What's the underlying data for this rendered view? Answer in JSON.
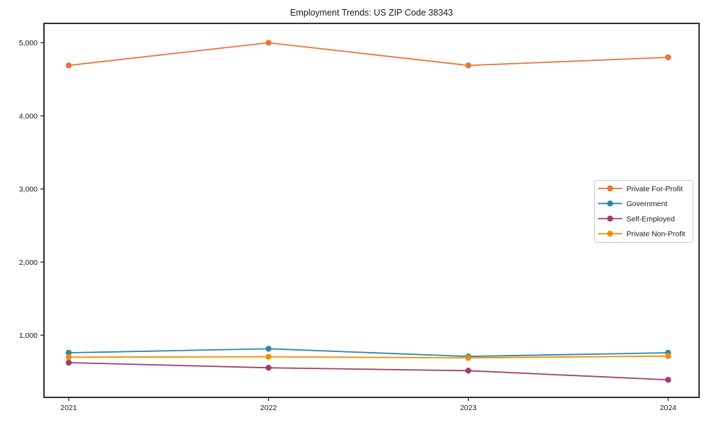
{
  "chart_data": {
    "type": "line",
    "title": "Employment Trends: US ZIP Code 38343",
    "xlabel": "",
    "ylabel": "",
    "x_tick_labels": [
      "2021",
      "2022",
      "2023",
      "2024"
    ],
    "x_values": [
      2021,
      2022,
      2023,
      2024
    ],
    "y_ticks": [
      1000,
      2000,
      3000,
      4000,
      5000
    ],
    "y_tick_labels": [
      "1,000",
      "2,000",
      "3,000",
      "4,000",
      "5,000"
    ],
    "ylim": [
      150,
      5265
    ],
    "xlim": [
      -0.124,
      3.155
    ],
    "grid": false,
    "legend_position": "center-right",
    "marker": "circle",
    "series": [
      {
        "name": "Private For-Profit",
        "color": "#e8743b",
        "values": [
          4690,
          5000,
          4690,
          4800
        ]
      },
      {
        "name": "Government",
        "color": "#2e86ab",
        "values": [
          760,
          815,
          710,
          760
        ]
      },
      {
        "name": "Self-Employed",
        "color": "#a23b72",
        "values": [
          625,
          555,
          515,
          390
        ]
      },
      {
        "name": "Private Non-Profit",
        "color": "#f18f01",
        "values": [
          700,
          705,
          690,
          715
        ]
      }
    ],
    "colors": {
      "spine": "#1a1a1a",
      "background": "#ffffff",
      "legend_border": "#cccccc"
    }
  }
}
